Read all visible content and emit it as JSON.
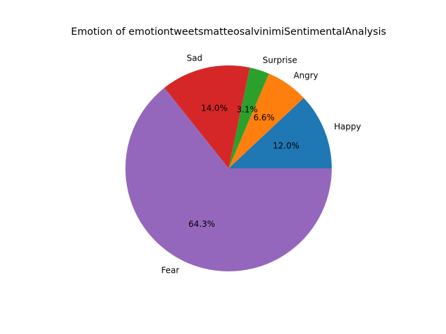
{
  "chart_data": {
    "type": "pie",
    "title": "Emotion of emotiontweetsmatteosalvinimiSentimentalAnalysis",
    "start_angle_deg": 0,
    "direction": "counterclockwise",
    "slices": [
      {
        "label": "Happy",
        "value": 12.0,
        "pct_label": "12.0%",
        "color": "#1f77b4"
      },
      {
        "label": "Angry",
        "value": 6.6,
        "pct_label": "6.6%",
        "color": "#ff7f0e"
      },
      {
        "label": "Surprise",
        "value": 3.1,
        "pct_label": "3.1%",
        "color": "#2ca02c"
      },
      {
        "label": "Sad",
        "value": 14.0,
        "pct_label": "14.0%",
        "color": "#d62728"
      },
      {
        "label": "Fear",
        "value": 64.3,
        "pct_label": "64.3%",
        "color": "#9467bd"
      }
    ]
  }
}
